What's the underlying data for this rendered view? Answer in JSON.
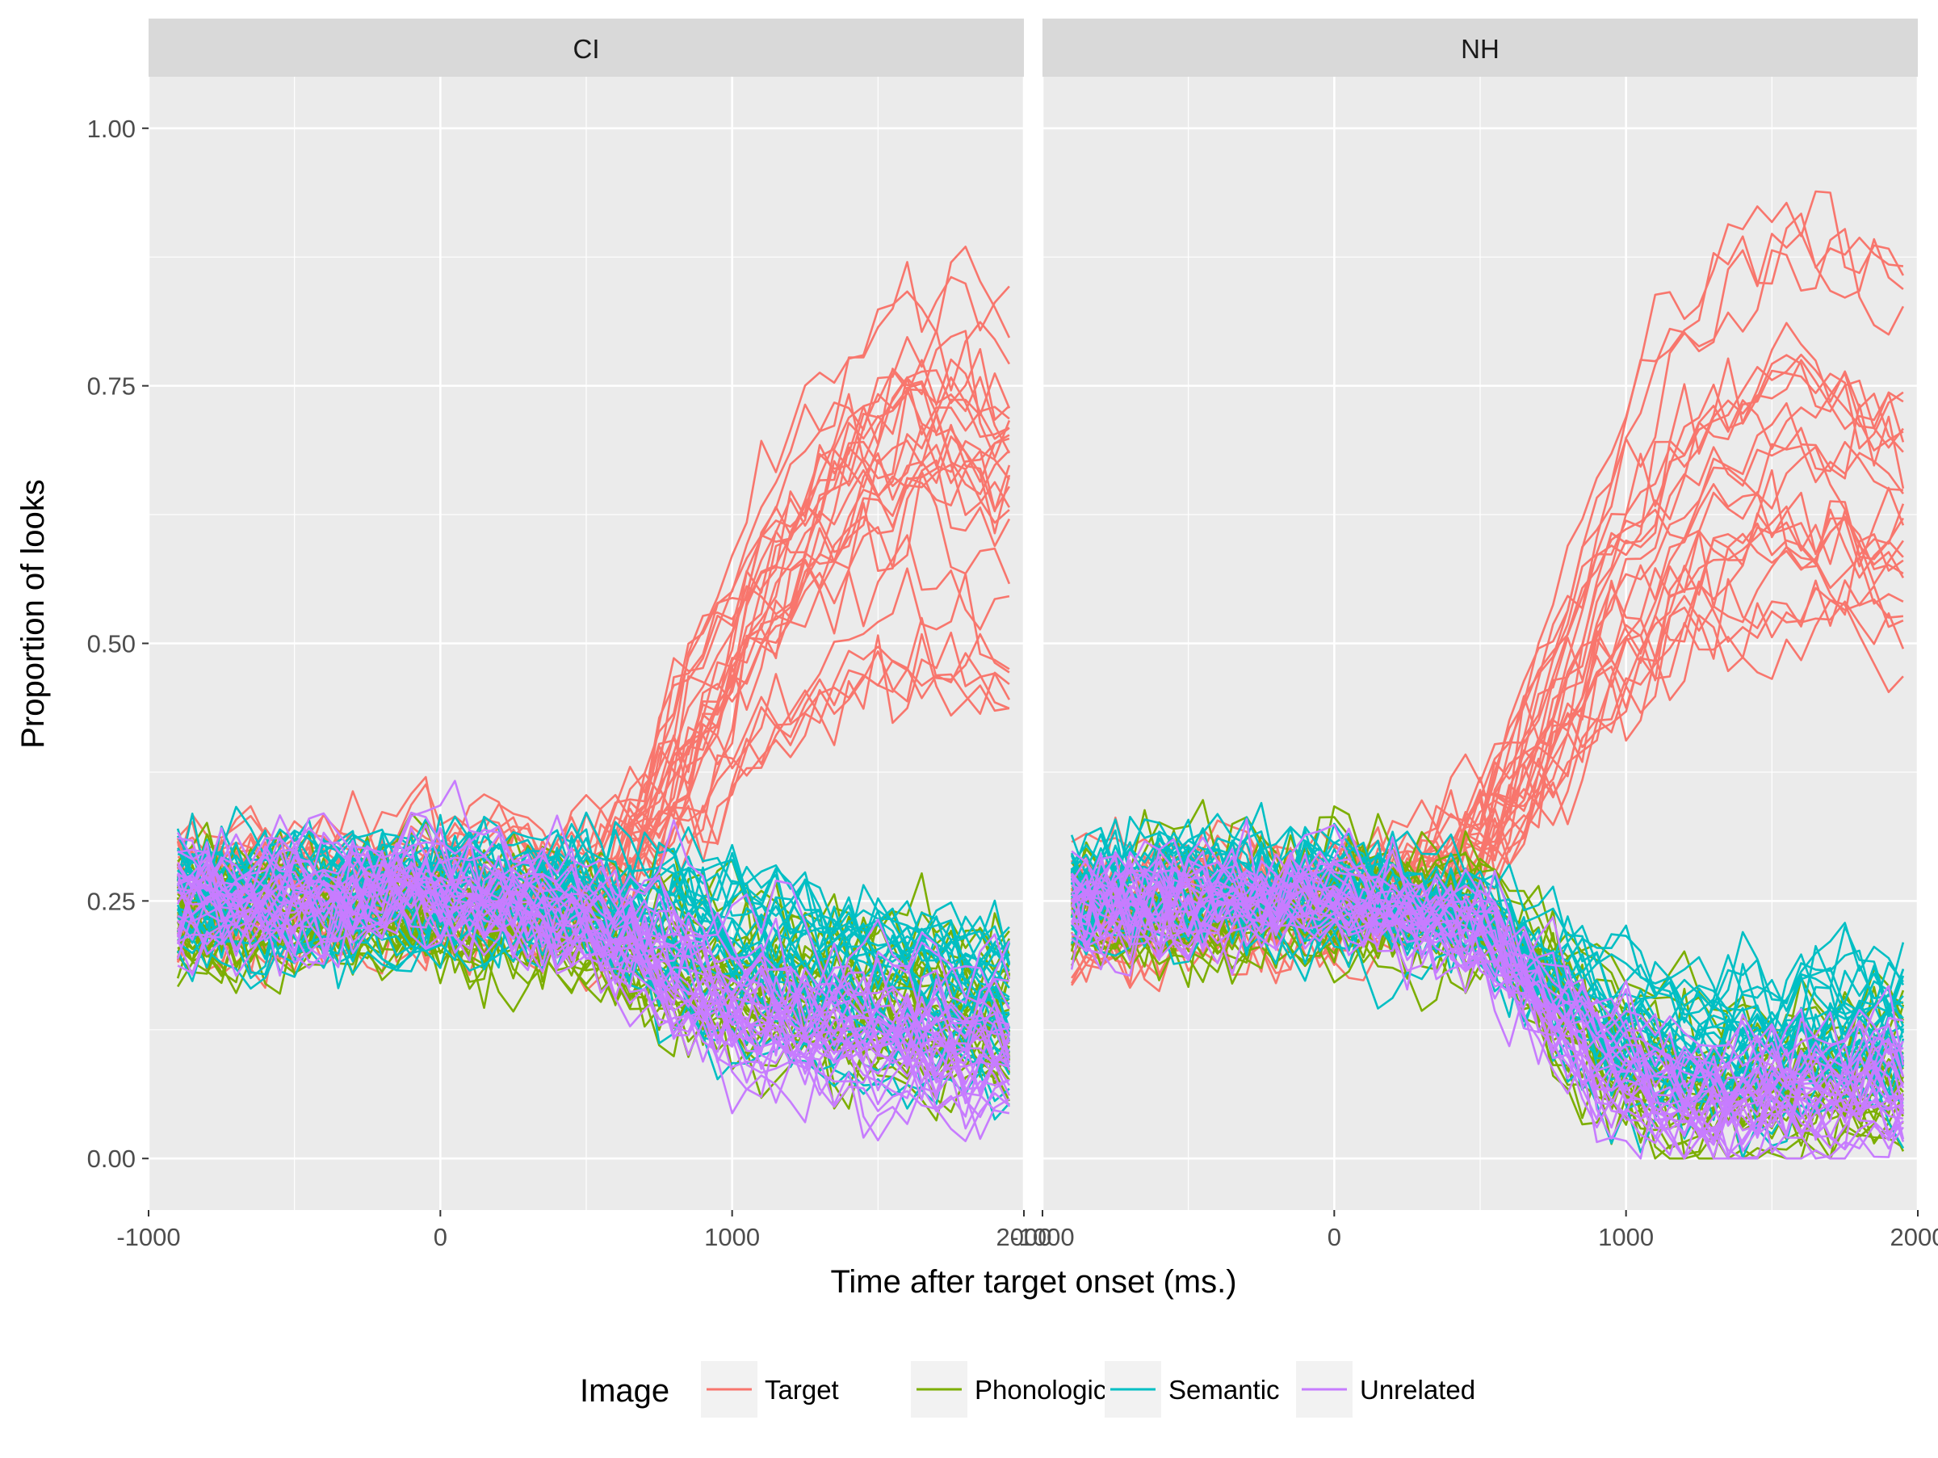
{
  "chart_data": {
    "type": "line",
    "xlabel": "Time after target onset (ms.)",
    "ylabel": "Proportion of looks",
    "xlim": [
      -1000,
      2000
    ],
    "ylim": [
      -0.05,
      1.05
    ],
    "x_ticks": [
      "-1000",
      "0",
      "1000",
      "2000"
    ],
    "y_ticks": [
      "0.00",
      "0.25",
      "0.50",
      "0.75",
      "1.00"
    ],
    "legend": {
      "title": "Image",
      "position": "bottom",
      "items": [
        {
          "label": "Target",
          "color": "#F8766D"
        },
        {
          "label": "Phonological",
          "color": "#7CAE00"
        },
        {
          "label": "Semantic",
          "color": "#00BFC4"
        },
        {
          "label": "Unrelated",
          "color": "#C77CFF"
        }
      ]
    },
    "panels": [
      {
        "label": "CI",
        "series": [
          {
            "name": "Target",
            "color": "#F8766D",
            "count": 28,
            "mean_profile": {
              "x": [
                -900,
                -500,
                0,
                500,
                700,
                900,
                1100,
                1300,
                1500,
                1700,
                1950
              ],
              "y": [
                0.26,
                0.26,
                0.27,
                0.26,
                0.32,
                0.42,
                0.52,
                0.59,
                0.64,
                0.66,
                0.64
              ]
            },
            "spread": 0.1
          },
          {
            "name": "Phonological",
            "color": "#7CAE00",
            "count": 28,
            "mean_profile": {
              "x": [
                -900,
                -500,
                0,
                500,
                1000,
                1500,
                1950
              ],
              "y": [
                0.24,
                0.24,
                0.24,
                0.22,
                0.17,
                0.15,
                0.14
              ]
            },
            "spread": 0.07
          },
          {
            "name": "Semantic",
            "color": "#00BFC4",
            "count": 28,
            "mean_profile": {
              "x": [
                -900,
                -500,
                0,
                500,
                1000,
                1500,
                1950
              ],
              "y": [
                0.25,
                0.25,
                0.26,
                0.25,
                0.2,
                0.17,
                0.15
              ]
            },
            "spread": 0.08
          },
          {
            "name": "Unrelated",
            "color": "#C77CFF",
            "count": 28,
            "mean_profile": {
              "x": [
                -900,
                -500,
                0,
                500,
                1000,
                1500,
                1950
              ],
              "y": [
                0.25,
                0.25,
                0.26,
                0.23,
                0.14,
                0.11,
                0.1
              ]
            },
            "spread": 0.07
          }
        ]
      },
      {
        "label": "NH",
        "series": [
          {
            "name": "Target",
            "color": "#F8766D",
            "count": 26,
            "mean_profile": {
              "x": [
                -900,
                -500,
                0,
                400,
                600,
                800,
                1000,
                1200,
                1400,
                1600,
                1950
              ],
              "y": [
                0.24,
                0.25,
                0.25,
                0.28,
                0.36,
                0.48,
                0.6,
                0.67,
                0.72,
                0.74,
                0.7
              ]
            },
            "spread": 0.09
          },
          {
            "name": "Phonological",
            "color": "#7CAE00",
            "count": 26,
            "mean_profile": {
              "x": [
                -900,
                -500,
                0,
                500,
                900,
                1200,
                1950
              ],
              "y": [
                0.25,
                0.24,
                0.25,
                0.24,
                0.12,
                0.07,
                0.09
              ]
            },
            "spread": 0.06
          },
          {
            "name": "Semantic",
            "color": "#00BFC4",
            "count": 26,
            "mean_profile": {
              "x": [
                -900,
                -500,
                0,
                500,
                900,
                1200,
                1950
              ],
              "y": [
                0.26,
                0.27,
                0.26,
                0.24,
                0.14,
                0.11,
                0.13
              ]
            },
            "spread": 0.07
          },
          {
            "name": "Unrelated",
            "color": "#C77CFF",
            "count": 26,
            "mean_profile": {
              "x": [
                -900,
                -500,
                0,
                500,
                900,
                1200,
                1950
              ],
              "y": [
                0.25,
                0.25,
                0.26,
                0.22,
                0.1,
                0.06,
                0.07
              ]
            },
            "spread": 0.05
          }
        ]
      }
    ]
  }
}
